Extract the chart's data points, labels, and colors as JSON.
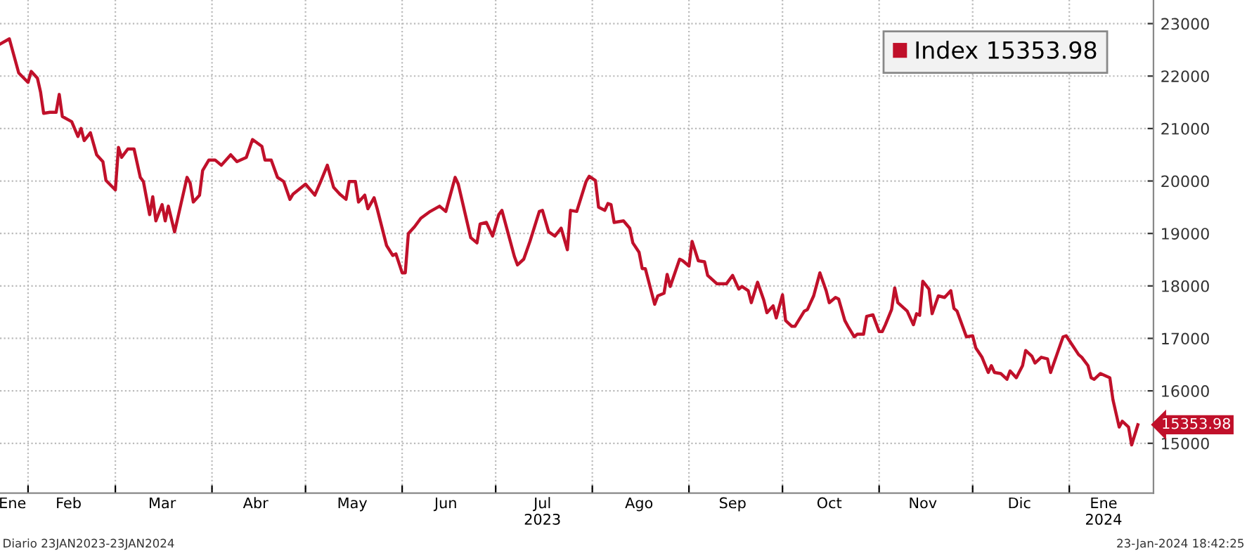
{
  "chart_data": {
    "type": "line",
    "x": [
      "2023-01-23",
      "2023-01-26",
      "2023-01-29",
      "2023-02-01",
      "2023-02-02",
      "2023-02-04",
      "2023-02-05",
      "2023-02-06",
      "2023-02-08",
      "2023-02-10",
      "2023-02-11",
      "2023-02-12",
      "2023-02-15",
      "2023-02-17",
      "2023-02-18",
      "2023-02-19",
      "2023-02-21",
      "2023-02-23",
      "2023-02-25",
      "2023-02-26",
      "2023-03-01",
      "2023-03-02",
      "2023-03-03",
      "2023-03-05",
      "2023-03-07",
      "2023-03-09",
      "2023-03-10",
      "2023-03-12",
      "2023-03-13",
      "2023-03-14",
      "2023-03-16",
      "2023-03-17",
      "2023-03-18",
      "2023-03-20",
      "2023-03-22",
      "2023-03-24",
      "2023-03-25",
      "2023-03-26",
      "2023-03-28",
      "2023-03-29",
      "2023-03-31",
      "2023-04-02",
      "2023-04-04",
      "2023-04-07",
      "2023-04-09",
      "2023-04-12",
      "2023-04-14",
      "2023-04-17",
      "2023-04-18",
      "2023-04-20",
      "2023-04-22",
      "2023-04-24",
      "2023-04-26",
      "2023-04-27",
      "2023-05-01",
      "2023-05-04",
      "2023-05-06",
      "2023-05-08",
      "2023-05-10",
      "2023-05-12",
      "2023-05-14",
      "2023-05-15",
      "2023-05-17",
      "2023-05-18",
      "2023-05-20",
      "2023-05-21",
      "2023-05-23",
      "2023-05-24",
      "2023-05-27",
      "2023-05-29",
      "2023-05-30",
      "2023-06-01",
      "2023-06-02",
      "2023-06-03",
      "2023-06-05",
      "2023-06-07",
      "2023-06-10",
      "2023-06-13",
      "2023-06-15",
      "2023-06-18",
      "2023-06-19",
      "2023-06-23",
      "2023-06-25",
      "2023-06-26",
      "2023-06-28",
      "2023-06-30",
      "2023-07-02",
      "2023-07-03",
      "2023-07-07",
      "2023-07-08",
      "2023-07-10",
      "2023-07-12",
      "2023-07-15",
      "2023-07-16",
      "2023-07-18",
      "2023-07-20",
      "2023-07-22",
      "2023-07-24",
      "2023-07-25",
      "2023-07-27",
      "2023-07-30",
      "2023-07-31",
      "2023-08-02",
      "2023-08-03",
      "2023-08-05",
      "2023-08-06",
      "2023-08-07",
      "2023-08-08",
      "2023-08-11",
      "2023-08-13",
      "2023-08-14",
      "2023-08-16",
      "2023-08-17",
      "2023-08-18",
      "2023-08-21",
      "2023-08-22",
      "2023-08-24",
      "2023-08-25",
      "2023-08-26",
      "2023-08-29",
      "2023-08-30",
      "2023-09-01",
      "2023-09-02",
      "2023-09-04",
      "2023-09-06",
      "2023-09-07",
      "2023-09-10",
      "2023-09-13",
      "2023-09-15",
      "2023-09-17",
      "2023-09-18",
      "2023-09-20",
      "2023-09-21",
      "2023-09-23",
      "2023-09-25",
      "2023-09-26",
      "2023-09-28",
      "2023-09-29",
      "2023-10-01",
      "2023-10-02",
      "2023-10-04",
      "2023-10-05",
      "2023-10-08",
      "2023-10-09",
      "2023-10-11",
      "2023-10-13",
      "2023-10-15",
      "2023-10-16",
      "2023-10-18",
      "2023-10-19",
      "2023-10-21",
      "2023-10-22",
      "2023-10-24",
      "2023-10-25",
      "2023-10-27",
      "2023-10-28",
      "2023-10-30",
      "2023-11-01",
      "2023-11-02",
      "2023-11-03",
      "2023-11-05",
      "2023-11-06",
      "2023-11-07",
      "2023-11-10",
      "2023-11-12",
      "2023-11-13",
      "2023-11-14",
      "2023-11-15",
      "2023-11-17",
      "2023-11-18",
      "2023-11-20",
      "2023-11-22",
      "2023-11-24",
      "2023-11-25",
      "2023-11-26",
      "2023-11-29",
      "2023-12-01",
      "2023-12-02",
      "2023-12-04",
      "2023-12-06",
      "2023-12-07",
      "2023-12-08",
      "2023-12-10",
      "2023-12-12",
      "2023-12-13",
      "2023-12-15",
      "2023-12-17",
      "2023-12-18",
      "2023-12-20",
      "2023-12-21",
      "2023-12-23",
      "2023-12-25",
      "2023-12-26",
      "2023-12-28",
      "2023-12-30",
      "2023-12-31",
      "2024-01-02",
      "2024-01-04",
      "2024-01-05",
      "2024-01-07",
      "2024-01-08",
      "2024-01-09",
      "2024-01-11",
      "2024-01-14",
      "2024-01-15",
      "2024-01-17",
      "2024-01-18",
      "2024-01-20",
      "2024-01-21",
      "2024-01-23"
    ],
    "series": [
      {
        "name": "Index 15353.98",
        "color": "#c0102a",
        "values": [
          22610,
          22710,
          22060,
          21880,
          22090,
          21960,
          21700,
          21290,
          21310,
          21310,
          21650,
          21230,
          21130,
          20850,
          21000,
          20770,
          20920,
          20500,
          20370,
          20010,
          19830,
          20640,
          20450,
          20610,
          20610,
          20070,
          19990,
          19360,
          19700,
          19240,
          19550,
          19240,
          19520,
          19030,
          19550,
          20070,
          19960,
          19600,
          19730,
          20200,
          20400,
          20400,
          20300,
          20500,
          20370,
          20450,
          20790,
          20660,
          20400,
          20400,
          20070,
          19990,
          19650,
          19750,
          19940,
          19730,
          20010,
          20300,
          19880,
          19750,
          19650,
          19990,
          19990,
          19600,
          19730,
          19470,
          19680,
          19470,
          18770,
          18580,
          18610,
          18250,
          18250,
          19000,
          19130,
          19290,
          19420,
          19520,
          19420,
          20070,
          19940,
          18920,
          18820,
          19180,
          19210,
          18950,
          19360,
          19440,
          18560,
          18400,
          18510,
          18850,
          19420,
          19440,
          19030,
          18950,
          19100,
          18690,
          19440,
          19420,
          19990,
          20090,
          20010,
          19500,
          19440,
          19570,
          19550,
          19210,
          19240,
          19100,
          18820,
          18640,
          18330,
          18330,
          17650,
          17810,
          17860,
          18220,
          17990,
          18510,
          18480,
          18380,
          18850,
          18480,
          18460,
          18200,
          18040,
          18040,
          18200,
          17940,
          17990,
          17910,
          17680,
          18070,
          17730,
          17490,
          17620,
          17390,
          17830,
          17340,
          17230,
          17230,
          17520,
          17550,
          17810,
          18250,
          17910,
          17680,
          17780,
          17750,
          17340,
          17230,
          17030,
          17080,
          17080,
          17420,
          17450,
          17130,
          17130,
          17260,
          17550,
          17960,
          17680,
          17520,
          17260,
          17470,
          17440,
          18090,
          17940,
          17470,
          17810,
          17780,
          17910,
          17570,
          17520,
          17030,
          17050,
          16820,
          16640,
          16350,
          16480,
          16350,
          16330,
          16220,
          16380,
          16250,
          16480,
          16770,
          16660,
          16530,
          16640,
          16610,
          16350,
          16690,
          17030,
          17050,
          16870,
          16690,
          16640,
          16480,
          16250,
          16220,
          16330,
          16250,
          15830,
          15310,
          15420,
          15310,
          14970,
          15353.98
        ],
        "value_labels": [
          null,
          null,
          null,
          null,
          null,
          null,
          null,
          null,
          null,
          null,
          null,
          null,
          null,
          null,
          null,
          null,
          null,
          null,
          null,
          null,
          null,
          null,
          null,
          null,
          null,
          null,
          null,
          null,
          null,
          null,
          null,
          null,
          null,
          null,
          null,
          null,
          null,
          null,
          null,
          null,
          null,
          null,
          null,
          null,
          null,
          null,
          null,
          null,
          null,
          null,
          null,
          null,
          null,
          null,
          null,
          null,
          null,
          null,
          null,
          null,
          null,
          null,
          null,
          null,
          null,
          null,
          null,
          null,
          null,
          null,
          null,
          null,
          null,
          null,
          null,
          null,
          null,
          null,
          null,
          null,
          null,
          null,
          null,
          null,
          null,
          null,
          null,
          null,
          null,
          null,
          null,
          null,
          null,
          null,
          null,
          null,
          null,
          null,
          null,
          null,
          null,
          null,
          null,
          null,
          null,
          null,
          null,
          null,
          null,
          null,
          null,
          null,
          null,
          null,
          null,
          null,
          null,
          null,
          null,
          null,
          null,
          null,
          null,
          null,
          null,
          null,
          null,
          null,
          null,
          null,
          null,
          null,
          null,
          null,
          null,
          null,
          null,
          null,
          null,
          null,
          null,
          null,
          null,
          null,
          null,
          null,
          null,
          null,
          null,
          null,
          null,
          null,
          null,
          null,
          null,
          null,
          null,
          null,
          null,
          null,
          null,
          null,
          null,
          null,
          null,
          null,
          null,
          null,
          null,
          null,
          null,
          null,
          null,
          null,
          null,
          null,
          null,
          null,
          null,
          null,
          null,
          null,
          null,
          null,
          null,
          null,
          null,
          null,
          null,
          null,
          null,
          null,
          null,
          null,
          null,
          null,
          null,
          null,
          null,
          null,
          null,
          null,
          null,
          null,
          null,
          null,
          null,
          null,
          null,
          "15353.98"
        ]
      }
    ],
    "xlim": [
      "2023-01-23",
      "2024-01-28"
    ],
    "xticks": [
      {
        "value": "2023-02-01",
        "label": null
      },
      {
        "value": "2023-03-01",
        "label": null
      },
      {
        "value": "2023-04-01",
        "label": null
      },
      {
        "value": "2023-05-01",
        "label": null
      },
      {
        "value": "2023-06-01",
        "label": null
      },
      {
        "value": "2023-07-01",
        "label": null
      },
      {
        "value": "2023-08-01",
        "label": null
      },
      {
        "value": "2023-09-01",
        "label": null
      },
      {
        "value": "2023-10-01",
        "label": null
      },
      {
        "value": "2023-11-01",
        "label": null
      },
      {
        "value": "2023-12-01",
        "label": null
      },
      {
        "value": "2024-01-01",
        "label": null
      },
      {
        "value": "2023-01-27",
        "label": "Ene"
      },
      {
        "value": "2023-02-14",
        "label": "Feb"
      },
      {
        "value": "2023-03-16",
        "label": "Mar"
      },
      {
        "value": "2023-04-15",
        "label": "Abr"
      },
      {
        "value": "2023-05-16",
        "label": "May"
      },
      {
        "value": "2023-06-15",
        "label": "Jun"
      },
      {
        "value": "2023-07-16",
        "label": "Jul\n2023"
      },
      {
        "value": "2023-08-16",
        "label": "Ago"
      },
      {
        "value": "2023-09-15",
        "label": "Sep"
      },
      {
        "value": "2023-10-16",
        "label": "Oct"
      },
      {
        "value": "2023-11-15",
        "label": "Nov"
      },
      {
        "value": "2023-12-16",
        "label": "Dic"
      },
      {
        "value": "2024-01-12",
        "label": "Ene\n2024"
      }
    ],
    "ylim": [
      14050,
      23450
    ],
    "yticks": [
      15000,
      16000,
      17000,
      18000,
      19000,
      20000,
      21000,
      22000,
      23000
    ],
    "grid": true,
    "legend": "top right",
    "annotations": [
      "Diario 23JAN2023-23JAN2024",
      "23-Jan-2024 18:42:25"
    ]
  }
}
